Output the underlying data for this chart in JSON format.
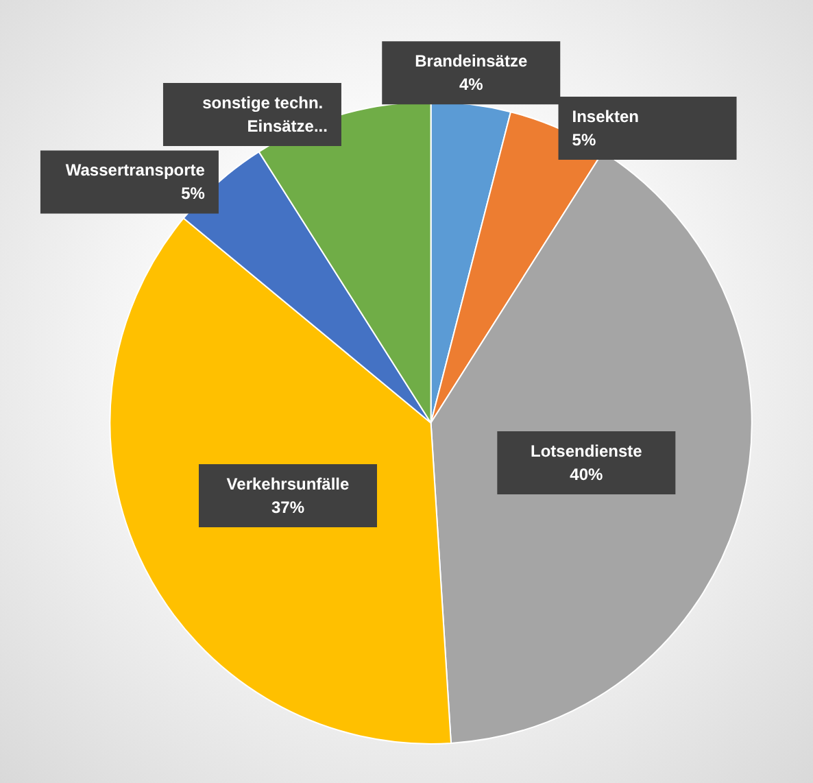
{
  "chart_data": {
    "type": "pie",
    "categories": [
      "Brandeinsätze",
      "Insekten",
      "Lotsendienste",
      "Verkehrsunfälle",
      "Wassertransporte",
      "sonstige techn. Einsätze..."
    ],
    "values": [
      4,
      5,
      40,
      37,
      5,
      9
    ],
    "value_labels": [
      "4%",
      "5%",
      "40%",
      "37%",
      "5%",
      null
    ],
    "colors": [
      "#5b9bd5",
      "#ed7d31",
      "#a5a5a5",
      "#ffc000",
      "#4472c4",
      "#70ad47"
    ]
  }
}
